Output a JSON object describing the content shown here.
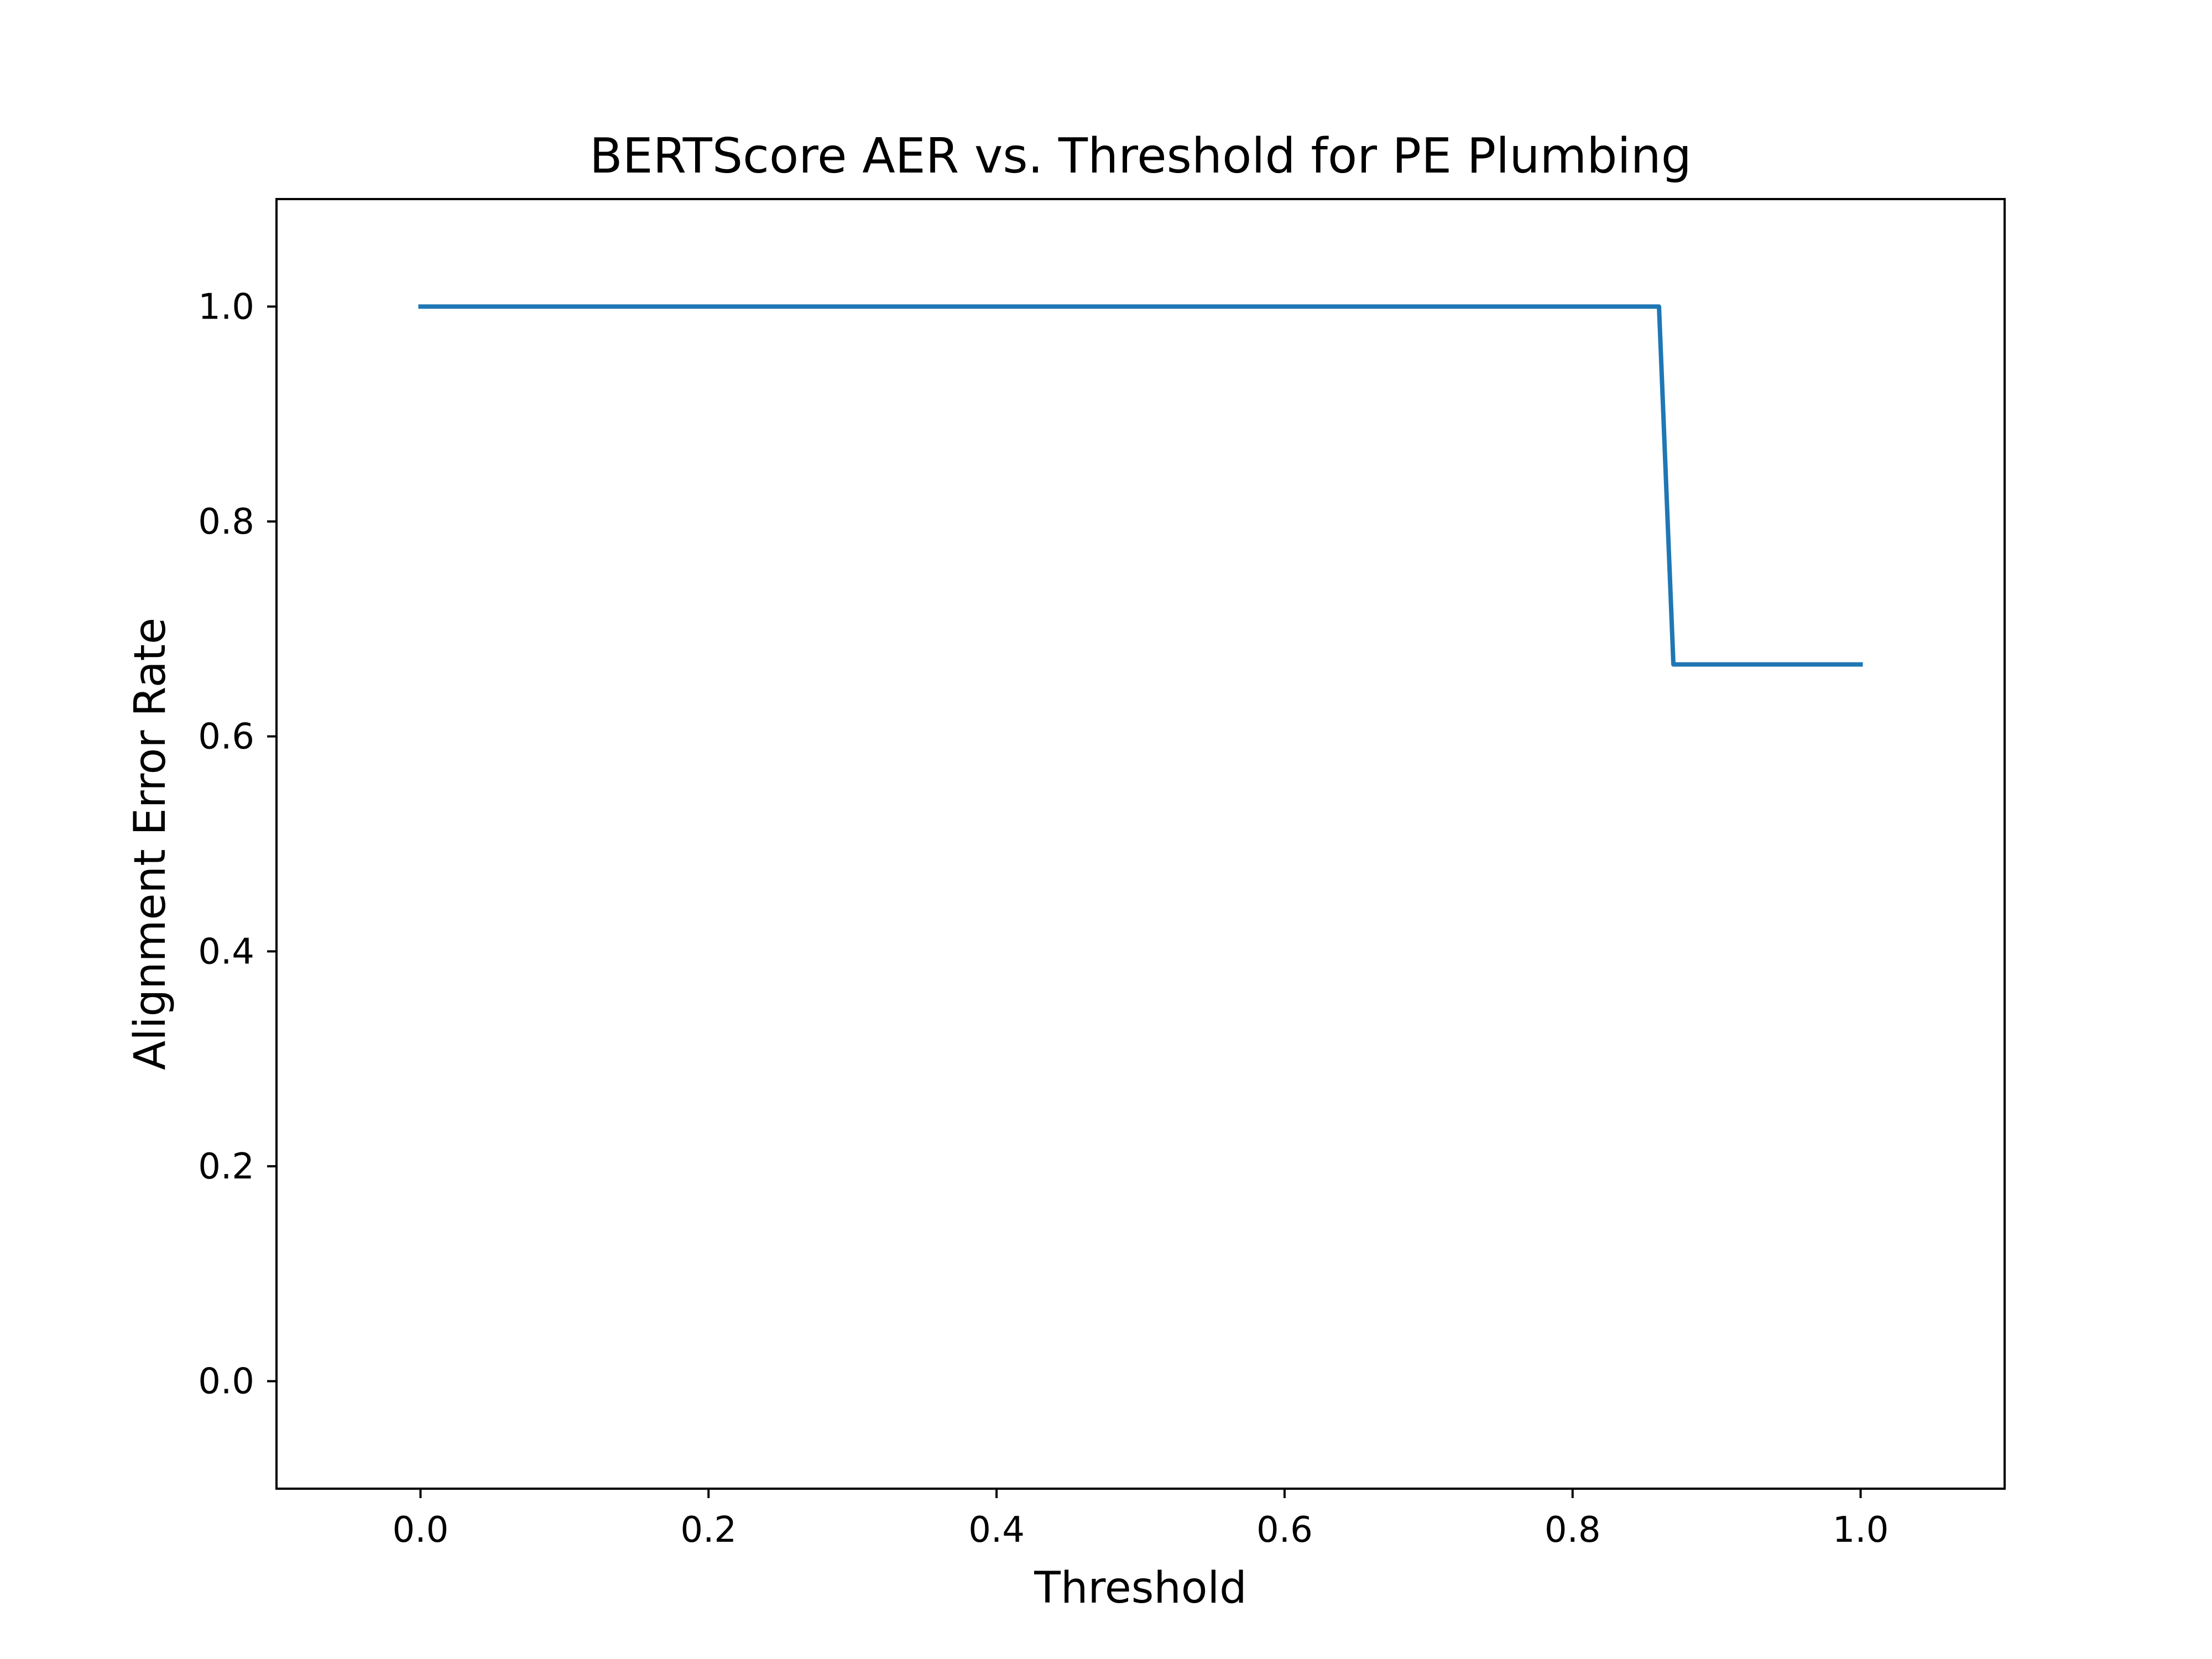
{
  "chart_data": {
    "type": "line",
    "title": "BERTScore AER vs. Threshold for PE Plumbing",
    "xlabel": "Threshold",
    "ylabel": "Alignment Error Rate",
    "xlim": [
      -0.1,
      1.1
    ],
    "ylim": [
      -0.1,
      1.1
    ],
    "x_ticks": [
      "0.0",
      "0.2",
      "0.4",
      "0.6",
      "0.8",
      "1.0"
    ],
    "y_ticks": [
      "0.0",
      "0.2",
      "0.4",
      "0.6",
      "0.8",
      "1.0"
    ],
    "grid": false,
    "legend": "none",
    "series": [
      {
        "color": "#1f77b4",
        "x": [
          0.0,
          0.01,
          0.02,
          0.03,
          0.04,
          0.05,
          0.06,
          0.07,
          0.08,
          0.09,
          0.1,
          0.11,
          0.12,
          0.13,
          0.14,
          0.15,
          0.16,
          0.17,
          0.18,
          0.19,
          0.2,
          0.21,
          0.22,
          0.23,
          0.24,
          0.25,
          0.26,
          0.27,
          0.28,
          0.29,
          0.3,
          0.31,
          0.32,
          0.33,
          0.34,
          0.35,
          0.36,
          0.37,
          0.38,
          0.39,
          0.4,
          0.41,
          0.42,
          0.43,
          0.44,
          0.45,
          0.46,
          0.47,
          0.48,
          0.49,
          0.5,
          0.51,
          0.52,
          0.53,
          0.54,
          0.55,
          0.56,
          0.57,
          0.58,
          0.59,
          0.6,
          0.61,
          0.62,
          0.63,
          0.64,
          0.65,
          0.66,
          0.67,
          0.68,
          0.69,
          0.7,
          0.71,
          0.72,
          0.73,
          0.74,
          0.75,
          0.76,
          0.77,
          0.78,
          0.79,
          0.8,
          0.81,
          0.82,
          0.83,
          0.84,
          0.85,
          0.86,
          0.87,
          0.88,
          0.89,
          0.9,
          0.91,
          0.92,
          0.93,
          0.94,
          0.95,
          0.96,
          0.97,
          0.98,
          0.99,
          1.0
        ],
        "y": [
          1.0,
          1.0,
          1.0,
          1.0,
          1.0,
          1.0,
          1.0,
          1.0,
          1.0,
          1.0,
          1.0,
          1.0,
          1.0,
          1.0,
          1.0,
          1.0,
          1.0,
          1.0,
          1.0,
          1.0,
          1.0,
          1.0,
          1.0,
          1.0,
          1.0,
          1.0,
          1.0,
          1.0,
          1.0,
          1.0,
          1.0,
          1.0,
          1.0,
          1.0,
          1.0,
          1.0,
          1.0,
          1.0,
          1.0,
          1.0,
          1.0,
          1.0,
          1.0,
          1.0,
          1.0,
          1.0,
          1.0,
          1.0,
          1.0,
          1.0,
          1.0,
          1.0,
          1.0,
          1.0,
          1.0,
          1.0,
          1.0,
          1.0,
          1.0,
          1.0,
          1.0,
          1.0,
          1.0,
          1.0,
          1.0,
          1.0,
          1.0,
          1.0,
          1.0,
          1.0,
          1.0,
          1.0,
          1.0,
          1.0,
          1.0,
          1.0,
          1.0,
          1.0,
          1.0,
          1.0,
          1.0,
          1.0,
          1.0,
          1.0,
          1.0,
          1.0,
          1.0,
          0.667,
          0.667,
          0.667,
          0.667,
          0.667,
          0.667,
          0.667,
          0.667,
          0.667,
          0.667,
          0.667,
          0.667,
          0.667,
          0.667
        ]
      }
    ]
  }
}
